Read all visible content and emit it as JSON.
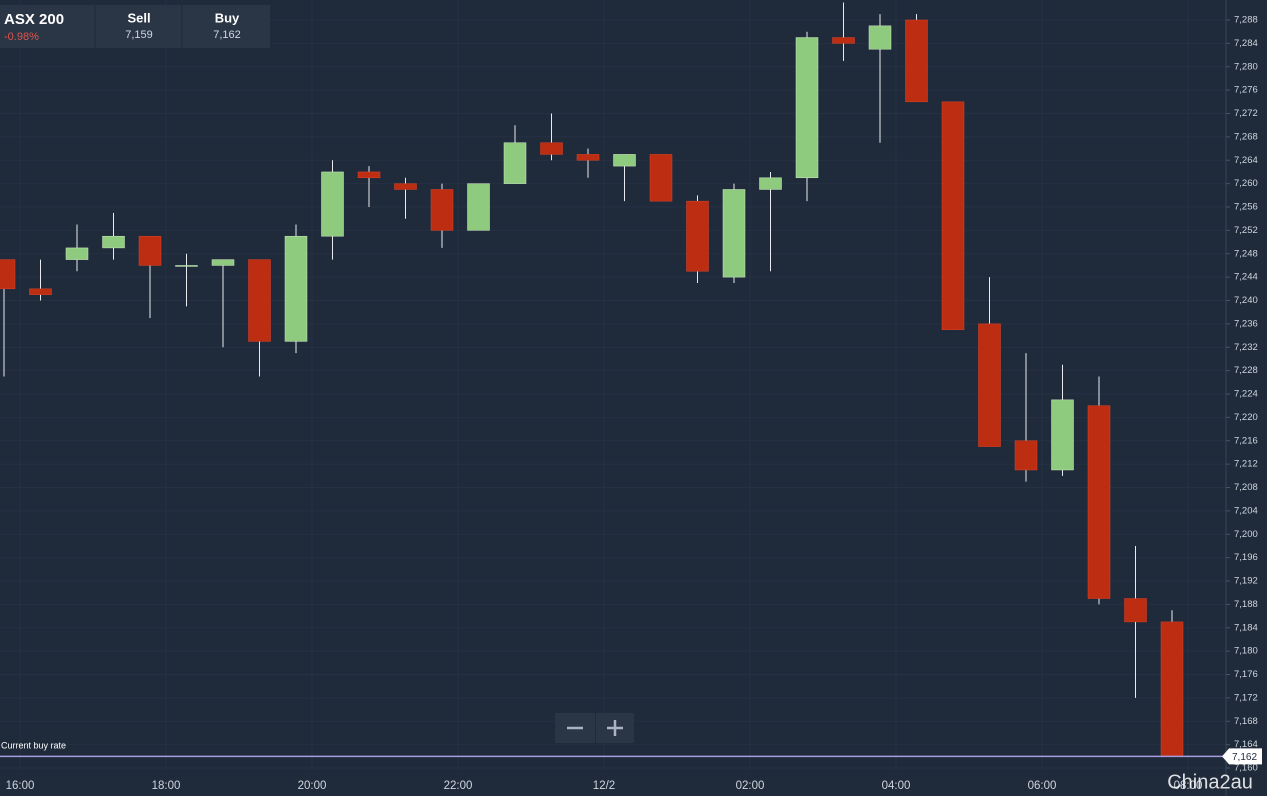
{
  "chart_data": {
    "type": "candlestick",
    "instrument": "ASX 200",
    "change": "-0.98%",
    "sell_label": "Sell",
    "sell": "7,159",
    "buy_label": "Buy",
    "buy": "7,162",
    "current_rate_label": "Current buy rate",
    "current_rate": {
      "value": 7162,
      "label": "7,162"
    },
    "watermark": "China2au",
    "up_color": "#8fcb7f",
    "down_color": "#bd2d12",
    "open": [
      7247,
      7242,
      7247,
      7249,
      7251,
      7246,
      7246,
      7247,
      7233,
      7251,
      7262,
      7260,
      7259,
      7252,
      7260,
      7267,
      7265,
      7263,
      7265,
      7257,
      7244,
      7259,
      7261,
      7285,
      7283,
      7288,
      7274,
      7236,
      7216,
      7211,
      7222,
      7189,
      7185
    ],
    "high": [
      7247,
      7247,
      7253,
      7255,
      7251,
      7248,
      7247,
      7247,
      7253,
      7264,
      7263,
      7261,
      7260,
      7260,
      7270,
      7272,
      7266,
      7265,
      7265,
      7258,
      7260,
      7262,
      7286,
      7291,
      7289,
      7289,
      7274,
      7244,
      7231,
      7229,
      7227,
      7198,
      7187
    ],
    "low": [
      7227,
      7240,
      7245,
      7247,
      7237,
      7239,
      7232,
      7227,
      7231,
      7247,
      7256,
      7254,
      7249,
      7252,
      7260,
      7264,
      7261,
      7257,
      7257,
      7243,
      7243,
      7245,
      7257,
      7281,
      7267,
      7274,
      7235,
      7215,
      7209,
      7210,
      7188,
      7172,
      7162
    ],
    "close": [
      7242,
      7241,
      7249,
      7251,
      7246,
      7246,
      7247,
      7233,
      7251,
      7262,
      7261,
      7259,
      7252,
      7260,
      7267,
      7265,
      7264,
      7265,
      7257,
      7245,
      7259,
      7261,
      7285,
      7284,
      7287,
      7274,
      7235,
      7215,
      7211,
      7223,
      7189,
      7185,
      7162
    ],
    "xtick_labels": [
      "16:00",
      "18:00",
      "20:00",
      "22:00",
      "12/2",
      "02:00",
      "04:00",
      "06:00",
      "08:00"
    ],
    "ylim": [
      7160,
      7288
    ],
    "yticks": [
      {
        "value": 7160,
        "label": "7,160"
      },
      {
        "value": 7164,
        "label": "7,164"
      },
      {
        "value": 7168,
        "label": "7,168"
      },
      {
        "value": 7172,
        "label": "7,172"
      },
      {
        "value": 7176,
        "label": "7,176"
      },
      {
        "value": 7180,
        "label": "7,180"
      },
      {
        "value": 7184,
        "label": "7,184"
      },
      {
        "value": 7188,
        "label": "7,188"
      },
      {
        "value": 7192,
        "label": "7,192"
      },
      {
        "value": 7196,
        "label": "7,196"
      },
      {
        "value": 7200,
        "label": "7,200"
      },
      {
        "value": 7204,
        "label": "7,204"
      },
      {
        "value": 7208,
        "label": "7,208"
      },
      {
        "value": 7212,
        "label": "7,212"
      },
      {
        "value": 7216,
        "label": "7,216"
      },
      {
        "value": 7220,
        "label": "7,220"
      },
      {
        "value": 7224,
        "label": "7,224"
      },
      {
        "value": 7228,
        "label": "7,228"
      },
      {
        "value": 7232,
        "label": "7,232"
      },
      {
        "value": 7236,
        "label": "7,236"
      },
      {
        "value": 7240,
        "label": "7,240"
      },
      {
        "value": 7244,
        "label": "7,244"
      },
      {
        "value": 7248,
        "label": "7,248"
      },
      {
        "value": 7252,
        "label": "7,252"
      },
      {
        "value": 7256,
        "label": "7,256"
      },
      {
        "value": 7260,
        "label": "7,260"
      },
      {
        "value": 7264,
        "label": "7,264"
      },
      {
        "value": 7268,
        "label": "7,268"
      },
      {
        "value": 7272,
        "label": "7,272"
      },
      {
        "value": 7276,
        "label": "7,276"
      },
      {
        "value": 7280,
        "label": "7,280"
      },
      {
        "value": 7284,
        "label": "7,284"
      },
      {
        "value": 7288,
        "label": "7,288"
      }
    ],
    "grid": true
  }
}
